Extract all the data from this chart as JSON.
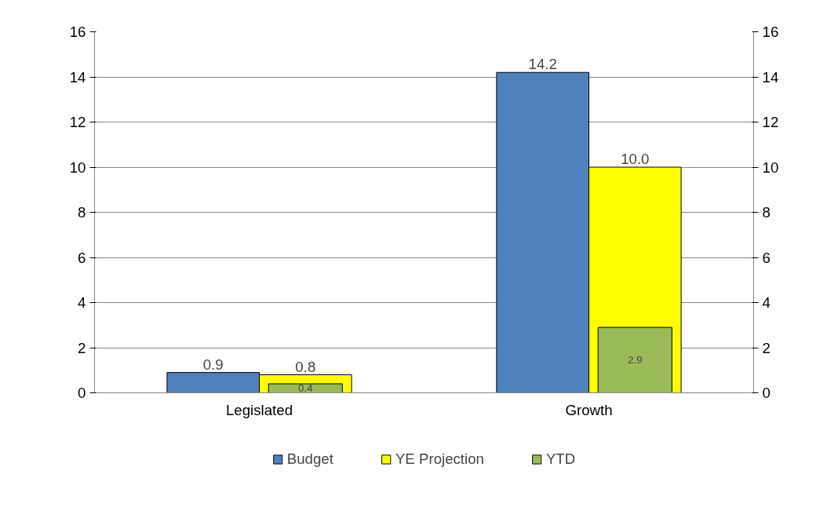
{
  "chart_data": {
    "type": "bar",
    "categories": [
      "Legislated",
      "Growth"
    ],
    "series": [
      {
        "name": "Budget",
        "color": "#4f81bd",
        "values": [
          0.9,
          14.2
        ],
        "value_labels": [
          "0.9",
          "14.2"
        ]
      },
      {
        "name": "YE Projection",
        "color": "#ffff00",
        "values": [
          0.8,
          10.0
        ],
        "value_labels": [
          "0.8",
          "10.0"
        ]
      },
      {
        "name": "YTD",
        "color": "#9bbb59",
        "values": [
          0.4,
          2.9
        ],
        "value_labels": [
          "0.4",
          "2.9"
        ]
      }
    ],
    "ylim": [
      0,
      16
    ],
    "yticks": [
      0,
      2,
      4,
      6,
      8,
      10,
      12,
      14,
      16
    ],
    "y2lim": [
      0,
      16
    ],
    "y2ticks": [
      0,
      2,
      4,
      6,
      8,
      10,
      12,
      14,
      16
    ],
    "grid": "y",
    "legend": "bottom"
  }
}
